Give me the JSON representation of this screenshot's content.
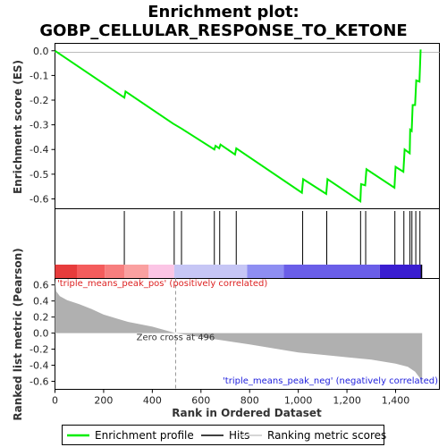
{
  "chart_data": {
    "type": "line",
    "title_line1": "Enrichment plot:",
    "title_line2": "GOBP_CELLULAR_RESPONSE_TO_KETONE",
    "es_ylabel": "Enrichment score (ES)",
    "metric_ylabel": "Ranked list metric (Pearson)",
    "xlabel": "Rank in Ordered Dataset",
    "x_range": [
      0,
      1580
    ],
    "x_ticks": [
      "0",
      "200",
      "400",
      "600",
      "800",
      "1,000",
      "1,200",
      "1,400"
    ],
    "es_ylim": [
      -0.64,
      0.03
    ],
    "es_ticks": [
      "0.0",
      "-0.1",
      "-0.2",
      "-0.3",
      "-0.4",
      "-0.5",
      "-0.6"
    ],
    "metric_ylim": [
      -0.7,
      0.68
    ],
    "metric_ticks": [
      "0.6",
      "0.4",
      "0.2",
      "0.0",
      "-0.2",
      "-0.4",
      "-0.6"
    ],
    "n_ranks": 1509,
    "es_profile": [
      [
        0,
        0.0
      ],
      [
        285,
        -0.19
      ],
      [
        290,
        -0.165
      ],
      [
        485,
        -0.295
      ],
      [
        520,
        -0.315
      ],
      [
        655,
        -0.4
      ],
      [
        660,
        -0.385
      ],
      [
        675,
        -0.395
      ],
      [
        680,
        -0.38
      ],
      [
        740,
        -0.42
      ],
      [
        745,
        -0.395
      ],
      [
        1015,
        -0.575
      ],
      [
        1020,
        -0.52
      ],
      [
        1115,
        -0.58
      ],
      [
        1120,
        -0.52
      ],
      [
        1255,
        -0.61
      ],
      [
        1258,
        -0.54
      ],
      [
        1275,
        -0.545
      ],
      [
        1280,
        -0.48
      ],
      [
        1395,
        -0.555
      ],
      [
        1400,
        -0.47
      ],
      [
        1432,
        -0.49
      ],
      [
        1437,
        -0.4
      ],
      [
        1458,
        -0.415
      ],
      [
        1460,
        -0.32
      ],
      [
        1466,
        -0.325
      ],
      [
        1470,
        -0.22
      ],
      [
        1480,
        -0.22
      ],
      [
        1485,
        -0.12
      ],
      [
        1498,
        -0.125
      ],
      [
        1503,
        0.005
      ]
    ],
    "hits": [
      285,
      490,
      520,
      655,
      677,
      745,
      1018,
      1117,
      1256,
      1277,
      1397,
      1434,
      1459,
      1467,
      1483,
      1500
    ],
    "metric_curve": [
      [
        0,
        0.66
      ],
      [
        5,
        0.52
      ],
      [
        20,
        0.46
      ],
      [
        50,
        0.41
      ],
      [
        100,
        0.36
      ],
      [
        150,
        0.3
      ],
      [
        200,
        0.23
      ],
      [
        300,
        0.14
      ],
      [
        400,
        0.08
      ],
      [
        496,
        0.0
      ],
      [
        600,
        -0.05
      ],
      [
        800,
        -0.14
      ],
      [
        1000,
        -0.24
      ],
      [
        1100,
        -0.27
      ],
      [
        1200,
        -0.3
      ],
      [
        1300,
        -0.33
      ],
      [
        1400,
        -0.38
      ],
      [
        1450,
        -0.42
      ],
      [
        1480,
        -0.48
      ],
      [
        1500,
        -0.56
      ],
      [
        1509,
        -0.62
      ]
    ],
    "zero_cross_label": "Zero cross at 496",
    "zero_cross": 496,
    "pos_label": "'triple_means_peak_pos' (positively correlated)",
    "neg_label": "'triple_means_peak_neg' (negatively correlated)",
    "colors": {
      "es_line": "#00ee00",
      "hit": "#000000",
      "metric_fill": "#b0b0b0",
      "pos_text": "#dd2222",
      "neg_text": "#2222dd",
      "zero_line": "#999999"
    },
    "heat_segments": [
      {
        "to": 90,
        "color": "#e73c3c"
      },
      {
        "to": 205,
        "color": "#f45c5c"
      },
      {
        "to": 285,
        "color": "#f77e7e"
      },
      {
        "to": 385,
        "color": "#faa0a0"
      },
      {
        "to": 490,
        "color": "#fbc5e5"
      },
      {
        "to": 790,
        "color": "#c6c6f5"
      },
      {
        "to": 940,
        "color": "#8e8ef2"
      },
      {
        "to": 1335,
        "color": "#6a5ee8"
      },
      {
        "to": 1509,
        "color": "#3a1ed0"
      }
    ],
    "legend": [
      {
        "label": "Enrichment profile",
        "kind": "line",
        "color": "#00ee00"
      },
      {
        "label": "Hits",
        "kind": "line",
        "color": "#000000"
      },
      {
        "label": "Ranking metric scores",
        "kind": "line",
        "color": "#c8c8c8"
      }
    ]
  }
}
